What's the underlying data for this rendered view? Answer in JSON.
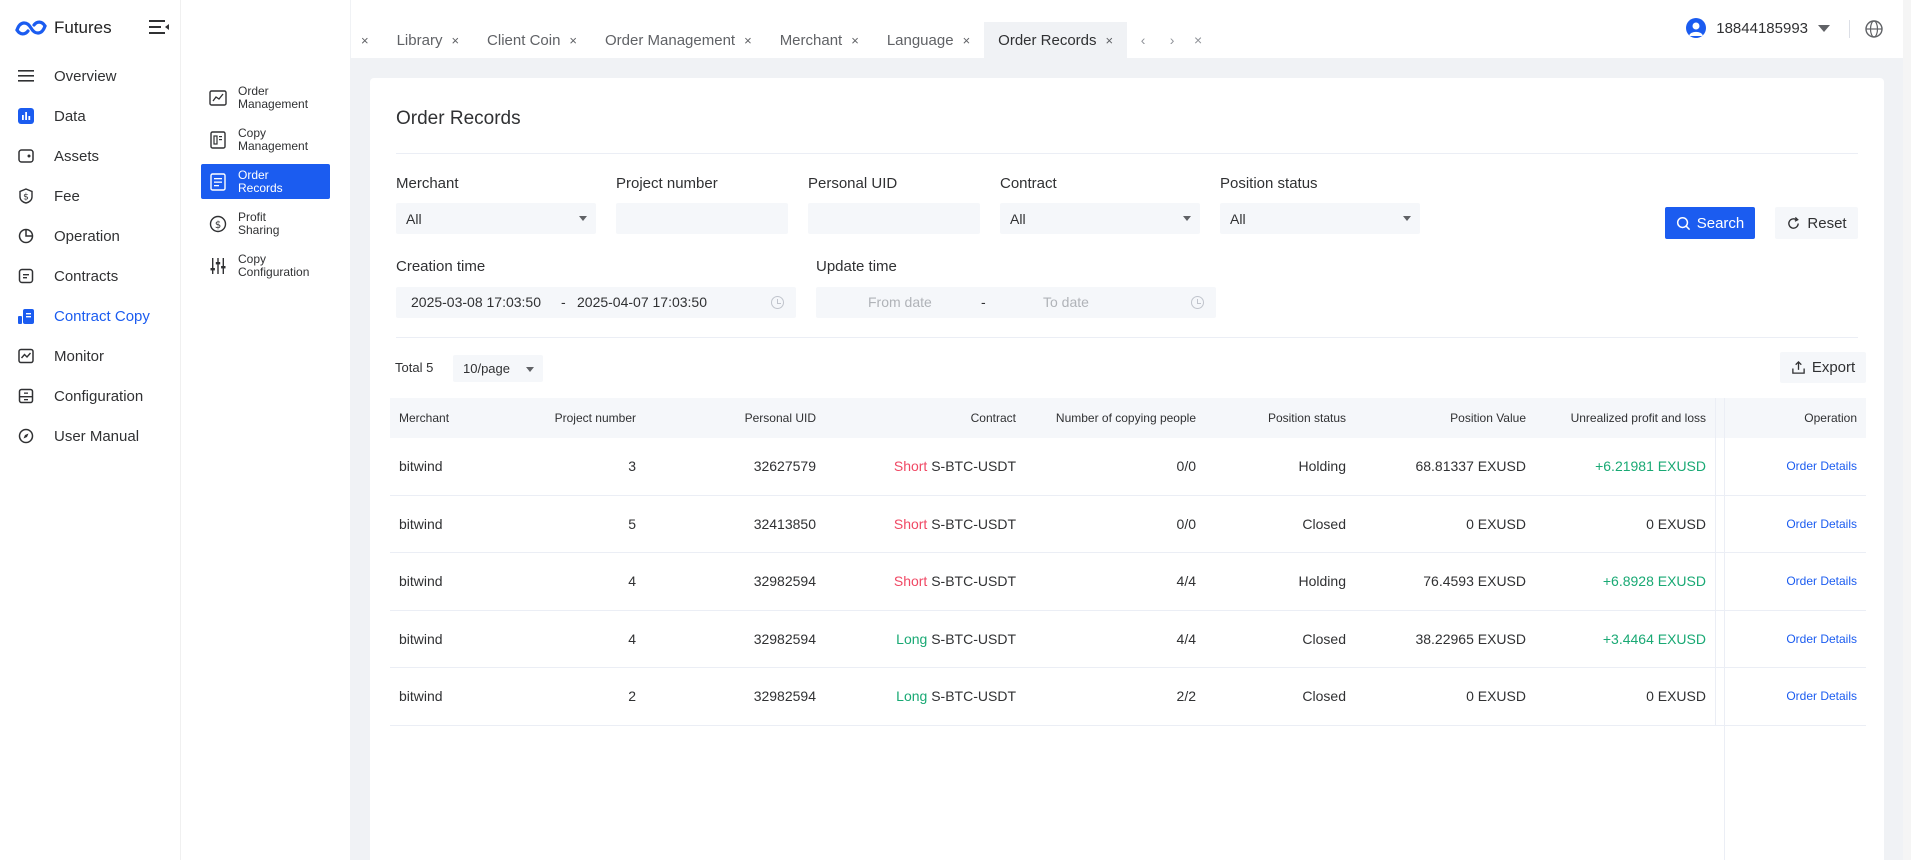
{
  "app": {
    "name": "Futures"
  },
  "sidebar": {
    "items": [
      {
        "label": "Overview",
        "icon": "list-icon"
      },
      {
        "label": "Data",
        "icon": "bar-chart-icon"
      },
      {
        "label": "Assets",
        "icon": "wallet-icon"
      },
      {
        "label": "Fee",
        "icon": "dollar-icon"
      },
      {
        "label": "Operation",
        "icon": "pie-icon"
      },
      {
        "label": "Contracts",
        "icon": "document-icon"
      },
      {
        "label": "Contract Copy",
        "icon": "copy-chart-icon",
        "active": true
      },
      {
        "label": "Monitor",
        "icon": "monitor-icon"
      },
      {
        "label": "Configuration",
        "icon": "cabinet-icon"
      },
      {
        "label": "User Manual",
        "icon": "compass-icon"
      }
    ]
  },
  "subnav": {
    "items": [
      {
        "label1": "Order",
        "label2": "Management"
      },
      {
        "label1": "Copy",
        "label2": "Management"
      },
      {
        "label1": "Order",
        "label2": "Records",
        "active": true
      },
      {
        "label1": "Profit",
        "label2": "Sharing"
      },
      {
        "label1": "Copy",
        "label2": "Configuration"
      }
    ]
  },
  "tabs": [
    {
      "label": "Library"
    },
    {
      "label": "Client Coin"
    },
    {
      "label": "Order Management"
    },
    {
      "label": "Merchant"
    },
    {
      "label": "Language"
    },
    {
      "label": "Order Records",
      "active": true
    }
  ],
  "tab_close_glyph": "×",
  "user": {
    "phone": "18844185993"
  },
  "page": {
    "title": "Order Records"
  },
  "filters": {
    "merchant_label": "Merchant",
    "merchant_value": "All",
    "project_label": "Project number",
    "project_value": "",
    "uid_label": "Personal UID",
    "uid_value": "",
    "contract_label": "Contract",
    "contract_value": "All",
    "position_label": "Position status",
    "position_value": "All",
    "creation_label": "Creation time",
    "creation_from": "2025-03-08 17:03:50",
    "creation_sep": "-",
    "creation_to": "2025-04-07 17:03:50",
    "update_label": "Update time",
    "update_from_placeholder": "From date",
    "update_sep": "-",
    "update_to_placeholder": "To date"
  },
  "actions": {
    "search_label": "Search",
    "reset_label": "Reset",
    "export_label": "Export"
  },
  "pagination": {
    "total_label": "Total 5",
    "page_size": "10/page"
  },
  "table": {
    "headers": [
      "Merchant",
      "Project number",
      "Personal UID",
      "Contract",
      "Number of copying people",
      "Position status",
      "Position Value",
      "Unrealized profit and loss",
      "Operation"
    ],
    "rows": [
      {
        "merchant": "bitwind",
        "project": "3",
        "uid": "32627579",
        "side": "Short",
        "contract": "S-BTC-USDT",
        "copying": "0/0",
        "status": "Holding",
        "value": "68.81337 EXUSD",
        "pnl": "+6.21981 EXUSD",
        "pnl_positive": true,
        "op": "Order Details"
      },
      {
        "merchant": "bitwind",
        "project": "5",
        "uid": "32413850",
        "side": "Short",
        "contract": "S-BTC-USDT",
        "copying": "0/0",
        "status": "Closed",
        "value": "0 EXUSD",
        "pnl": "0 EXUSD",
        "pnl_positive": false,
        "op": "Order Details"
      },
      {
        "merchant": "bitwind",
        "project": "4",
        "uid": "32982594",
        "side": "Short",
        "contract": "S-BTC-USDT",
        "copying": "4/4",
        "status": "Holding",
        "value": "76.4593 EXUSD",
        "pnl": "+6.8928 EXUSD",
        "pnl_positive": true,
        "op": "Order Details"
      },
      {
        "merchant": "bitwind",
        "project": "4",
        "uid": "32982594",
        "side": "Long",
        "contract": "S-BTC-USDT",
        "copying": "4/4",
        "status": "Closed",
        "value": "38.22965 EXUSD",
        "pnl": "+3.4464 EXUSD",
        "pnl_positive": true,
        "op": "Order Details"
      },
      {
        "merchant": "bitwind",
        "project": "2",
        "uid": "32982594",
        "side": "Long",
        "contract": "S-BTC-USDT",
        "copying": "2/2",
        "status": "Closed",
        "value": "0 EXUSD",
        "pnl": "0 EXUSD",
        "pnl_positive": false,
        "op": "Order Details"
      }
    ]
  },
  "colors": {
    "accent": "#1b5cf0",
    "short": "#f04864",
    "long": "#19a974"
  }
}
